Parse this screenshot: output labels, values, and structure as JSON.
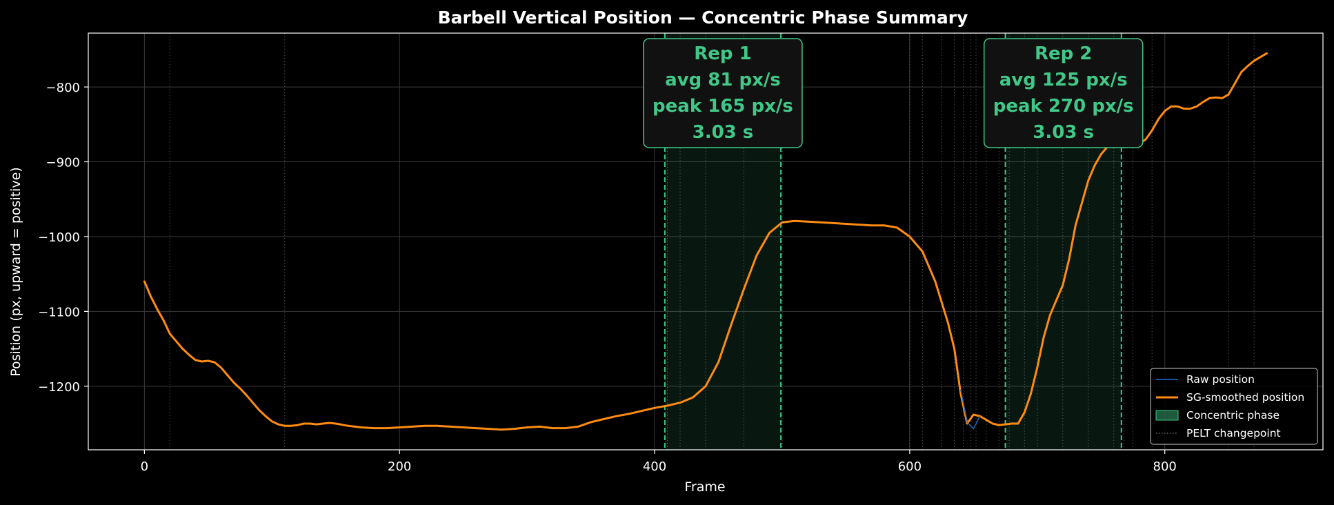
{
  "chart_data": {
    "type": "line",
    "title": "Barbell Vertical Position — Concentric Phase Summary",
    "xlabel": "Frame",
    "ylabel": "Position (px, upward = positive)",
    "xlim": [
      -44,
      924
    ],
    "ylim": [
      -1285,
      -728
    ],
    "xticks": [
      0,
      200,
      400,
      600,
      800
    ],
    "yticks": [
      -800,
      -900,
      -1000,
      -1100,
      -1200
    ],
    "xtick_labels": [
      "0",
      "200",
      "400",
      "600",
      "800"
    ],
    "ytick_labels": [
      "−800",
      "−900",
      "−1000",
      "−1100",
      "−1200"
    ],
    "grid": true,
    "legend_position": "lower-right",
    "colors": {
      "background": "#000000",
      "raw": "#1f6fd1",
      "smoothed": "#ff8c12",
      "concentric": "#41c888",
      "changepoint": "#6d6d6d",
      "grid": "#3a3a3a",
      "spine": "#ffffff"
    },
    "legend": [
      {
        "label": "Raw position",
        "kind": "raw"
      },
      {
        "label": "SG-smoothed position",
        "kind": "smoothed"
      },
      {
        "label": "Concentric phase",
        "kind": "concentric"
      },
      {
        "label": "PELT changepoint",
        "kind": "changepoint"
      }
    ],
    "changepoints": [
      20,
      110,
      410,
      420,
      440,
      470,
      500,
      600,
      610,
      625,
      635,
      642,
      648,
      652,
      660,
      670,
      678,
      690,
      700,
      720,
      740,
      760,
      768,
      775,
      790,
      850,
      870
    ],
    "concentric_phases": [
      {
        "start": 408,
        "end": 499,
        "lines": [
          "Rep 1",
          "avg  81 px/s",
          "peak 165 px/s",
          "3.03 s"
        ]
      },
      {
        "start": 675,
        "end": 766,
        "lines": [
          "Rep 2",
          "avg  125 px/s",
          "peak 270 px/s",
          "3.03 s"
        ]
      }
    ],
    "series": [
      {
        "name": "SG-smoothed position",
        "x": [
          0,
          5,
          10,
          15,
          20,
          25,
          30,
          35,
          40,
          45,
          50,
          55,
          60,
          65,
          70,
          75,
          80,
          85,
          90,
          95,
          100,
          105,
          110,
          115,
          120,
          125,
          130,
          135,
          140,
          145,
          150,
          160,
          170,
          180,
          190,
          200,
          210,
          220,
          230,
          240,
          250,
          260,
          270,
          280,
          290,
          300,
          310,
          320,
          330,
          340,
          350,
          360,
          370,
          380,
          390,
          400,
          410,
          420,
          430,
          440,
          450,
          460,
          470,
          480,
          490,
          500,
          510,
          520,
          530,
          540,
          550,
          560,
          570,
          580,
          590,
          600,
          610,
          620,
          630,
          635,
          640,
          645,
          650,
          655,
          660,
          665,
          670,
          675,
          680,
          685,
          690,
          695,
          700,
          705,
          710,
          715,
          720,
          725,
          730,
          735,
          740,
          745,
          750,
          755,
          760,
          765,
          770,
          775,
          780,
          785,
          790,
          795,
          800,
          805,
          810,
          815,
          820,
          825,
          830,
          835,
          840,
          845,
          850,
          855,
          860,
          865,
          870,
          875,
          880
        ],
        "values": [
          -1060,
          -1080,
          -1097,
          -1112,
          -1130,
          -1140,
          -1150,
          -1158,
          -1165,
          -1167,
          -1166,
          -1168,
          -1175,
          -1185,
          -1195,
          -1203,
          -1212,
          -1222,
          -1232,
          -1240,
          -1247,
          -1251,
          -1253,
          -1253,
          -1252,
          -1250,
          -1250,
          -1251,
          -1250,
          -1249,
          -1250,
          -1253,
          -1255,
          -1256,
          -1256,
          -1255,
          -1254,
          -1253,
          -1253,
          -1254,
          -1255,
          -1256,
          -1257,
          -1258,
          -1257,
          -1255,
          -1254,
          -1256,
          -1256,
          -1254,
          -1248,
          -1244,
          -1240,
          -1237,
          -1233,
          -1229,
          -1226,
          -1222,
          -1215,
          -1200,
          -1168,
          -1118,
          -1070,
          -1025,
          -995,
          -981,
          -979,
          -980,
          -981,
          -982,
          -983,
          -984,
          -985,
          -985,
          -988,
          -1000,
          -1020,
          -1060,
          -1115,
          -1150,
          -1210,
          -1250,
          -1238,
          -1240,
          -1245,
          -1250,
          -1252,
          -1251,
          -1250,
          -1250,
          -1235,
          -1210,
          -1175,
          -1135,
          -1105,
          -1085,
          -1065,
          -1030,
          -985,
          -955,
          -925,
          -905,
          -890,
          -880,
          -873,
          -870,
          -872,
          -876,
          -876,
          -870,
          -858,
          -843,
          -832,
          -826,
          -826,
          -829,
          -829,
          -826,
          -820,
          -815,
          -814,
          -815,
          -810,
          -795,
          -780,
          -772,
          -765,
          -760,
          -755
        ]
      },
      {
        "name": "Raw position",
        "x": [
          640,
          645,
          650,
          655
        ],
        "values": [
          -1205,
          -1248,
          -1257,
          -1240
        ]
      }
    ]
  }
}
